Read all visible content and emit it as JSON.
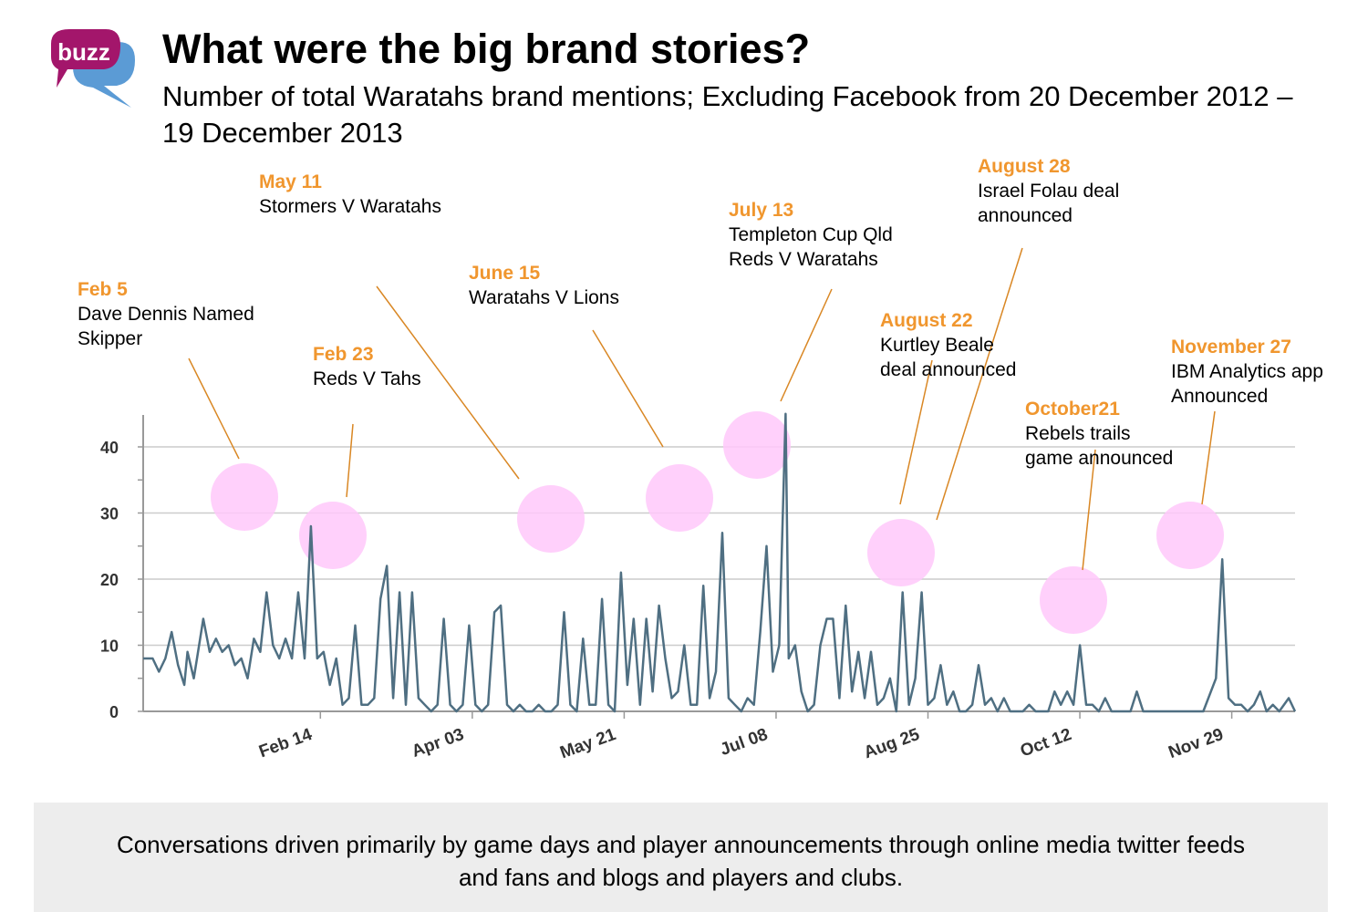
{
  "logo": {
    "text": "buzz",
    "colors": {
      "bubble_front": "#a3166b",
      "bubble_back": "#5b9bd5"
    }
  },
  "header": {
    "title": "What were the big brand stories?",
    "subtitle": "Number of total Waratahs brand mentions; Excluding Facebook from 20 December 2012 – 19 December 2013"
  },
  "colors": {
    "line": "#4f6f82",
    "annotation_date": "#f0962e",
    "leader": "#d98724",
    "highlight": "#ffc8fa",
    "grid": "#cccccc",
    "axis": "#999999"
  },
  "chart_data": {
    "type": "line",
    "title": "",
    "xlabel": "",
    "ylabel": "",
    "ylim": [
      0,
      46
    ],
    "yticks": [
      0,
      10,
      20,
      30,
      40
    ],
    "grid": true,
    "legend": "none",
    "x_range": [
      "2012-12-20",
      "2013-12-19"
    ],
    "x_tick_labels": [
      {
        "date": "2013-02-14",
        "label": "Feb 14"
      },
      {
        "date": "2013-04-03",
        "label": "Apr 03"
      },
      {
        "date": "2013-05-21",
        "label": "May 21"
      },
      {
        "date": "2013-07-08",
        "label": "Jul 08"
      },
      {
        "date": "2013-08-25",
        "label": "Aug 25"
      },
      {
        "date": "2013-10-12",
        "label": "Oct 12"
      },
      {
        "date": "2013-11-29",
        "label": "Nov 29"
      }
    ],
    "series": [
      {
        "points": [
          [
            "2012-12-20",
            8
          ],
          [
            "2012-12-23",
            8
          ],
          [
            "2012-12-25",
            6
          ],
          [
            "2012-12-27",
            8
          ],
          [
            "2012-12-29",
            12
          ],
          [
            "2012-12-31",
            7
          ],
          [
            "2013-01-02",
            4
          ],
          [
            "2013-01-03",
            9
          ],
          [
            "2013-01-05",
            5
          ],
          [
            "2013-01-06",
            8
          ],
          [
            "2013-01-08",
            14
          ],
          [
            "2013-01-10",
            9
          ],
          [
            "2013-01-12",
            11
          ],
          [
            "2013-01-14",
            9
          ],
          [
            "2013-01-16",
            10
          ],
          [
            "2013-01-18",
            7
          ],
          [
            "2013-01-20",
            8
          ],
          [
            "2013-01-22",
            5
          ],
          [
            "2013-01-24",
            11
          ],
          [
            "2013-01-26",
            9
          ],
          [
            "2013-01-28",
            18
          ],
          [
            "2013-01-30",
            10
          ],
          [
            "2013-02-01",
            8
          ],
          [
            "2013-02-03",
            11
          ],
          [
            "2013-02-05",
            8
          ],
          [
            "2013-02-07",
            18
          ],
          [
            "2013-02-09",
            8
          ],
          [
            "2013-02-11",
            28
          ],
          [
            "2013-02-13",
            8
          ],
          [
            "2013-02-15",
            9
          ],
          [
            "2013-02-17",
            4
          ],
          [
            "2013-02-19",
            8
          ],
          [
            "2013-02-21",
            1
          ],
          [
            "2013-02-23",
            2
          ],
          [
            "2013-02-25",
            13
          ],
          [
            "2013-02-27",
            1
          ],
          [
            "2013-03-01",
            1
          ],
          [
            "2013-03-03",
            2
          ],
          [
            "2013-03-05",
            17
          ],
          [
            "2013-03-07",
            22
          ],
          [
            "2013-03-09",
            2
          ],
          [
            "2013-03-11",
            18
          ],
          [
            "2013-03-13",
            1
          ],
          [
            "2013-03-15",
            18
          ],
          [
            "2013-03-17",
            2
          ],
          [
            "2013-03-19",
            1
          ],
          [
            "2013-03-21",
            0
          ],
          [
            "2013-03-23",
            1
          ],
          [
            "2013-03-25",
            14
          ],
          [
            "2013-03-27",
            1
          ],
          [
            "2013-03-29",
            0
          ],
          [
            "2013-03-31",
            1
          ],
          [
            "2013-04-02",
            13
          ],
          [
            "2013-04-04",
            1
          ],
          [
            "2013-04-06",
            0
          ],
          [
            "2013-04-08",
            1
          ],
          [
            "2013-04-10",
            15
          ],
          [
            "2013-04-12",
            16
          ],
          [
            "2013-04-14",
            1
          ],
          [
            "2013-04-16",
            0
          ],
          [
            "2013-04-18",
            1
          ],
          [
            "2013-04-20",
            0
          ],
          [
            "2013-04-22",
            0
          ],
          [
            "2013-04-24",
            1
          ],
          [
            "2013-04-26",
            0
          ],
          [
            "2013-04-28",
            0
          ],
          [
            "2013-04-30",
            1
          ],
          [
            "2013-05-02",
            15
          ],
          [
            "2013-05-04",
            1
          ],
          [
            "2013-05-06",
            0
          ],
          [
            "2013-05-08",
            11
          ],
          [
            "2013-05-10",
            1
          ],
          [
            "2013-05-12",
            1
          ],
          [
            "2013-05-14",
            17
          ],
          [
            "2013-05-16",
            1
          ],
          [
            "2013-05-18",
            0
          ],
          [
            "2013-05-20",
            21
          ],
          [
            "2013-05-22",
            4
          ],
          [
            "2013-05-24",
            14
          ],
          [
            "2013-05-26",
            1
          ],
          [
            "2013-05-28",
            14
          ],
          [
            "2013-05-30",
            3
          ],
          [
            "2013-06-01",
            16
          ],
          [
            "2013-06-03",
            8
          ],
          [
            "2013-06-05",
            2
          ],
          [
            "2013-06-07",
            3
          ],
          [
            "2013-06-09",
            10
          ],
          [
            "2013-06-11",
            1
          ],
          [
            "2013-06-13",
            1
          ],
          [
            "2013-06-15",
            19
          ],
          [
            "2013-06-17",
            2
          ],
          [
            "2013-06-19",
            6
          ],
          [
            "2013-06-21",
            27
          ],
          [
            "2013-06-23",
            2
          ],
          [
            "2013-06-25",
            1
          ],
          [
            "2013-06-27",
            0
          ],
          [
            "2013-06-29",
            2
          ],
          [
            "2013-07-01",
            1
          ],
          [
            "2013-07-03",
            12
          ],
          [
            "2013-07-05",
            25
          ],
          [
            "2013-07-07",
            6
          ],
          [
            "2013-07-09",
            10
          ],
          [
            "2013-07-11",
            45
          ],
          [
            "2013-07-12",
            8
          ],
          [
            "2013-07-14",
            10
          ],
          [
            "2013-07-16",
            3
          ],
          [
            "2013-07-18",
            0
          ],
          [
            "2013-07-20",
            1
          ],
          [
            "2013-07-22",
            10
          ],
          [
            "2013-07-24",
            14
          ],
          [
            "2013-07-26",
            14
          ],
          [
            "2013-07-28",
            2
          ],
          [
            "2013-07-30",
            16
          ],
          [
            "2013-08-01",
            3
          ],
          [
            "2013-08-03",
            9
          ],
          [
            "2013-08-05",
            2
          ],
          [
            "2013-08-07",
            9
          ],
          [
            "2013-08-09",
            1
          ],
          [
            "2013-08-11",
            2
          ],
          [
            "2013-08-13",
            5
          ],
          [
            "2013-08-15",
            0
          ],
          [
            "2013-08-17",
            18
          ],
          [
            "2013-08-19",
            1
          ],
          [
            "2013-08-21",
            5
          ],
          [
            "2013-08-23",
            18
          ],
          [
            "2013-08-25",
            1
          ],
          [
            "2013-08-27",
            2
          ],
          [
            "2013-08-29",
            7
          ],
          [
            "2013-08-31",
            1
          ],
          [
            "2013-09-02",
            3
          ],
          [
            "2013-09-04",
            0
          ],
          [
            "2013-09-06",
            0
          ],
          [
            "2013-09-08",
            1
          ],
          [
            "2013-09-10",
            7
          ],
          [
            "2013-09-12",
            1
          ],
          [
            "2013-09-14",
            2
          ],
          [
            "2013-09-16",
            0
          ],
          [
            "2013-09-18",
            2
          ],
          [
            "2013-09-20",
            0
          ],
          [
            "2013-09-24",
            0
          ],
          [
            "2013-09-26",
            1
          ],
          [
            "2013-09-28",
            0
          ],
          [
            "2013-10-02",
            0
          ],
          [
            "2013-10-04",
            3
          ],
          [
            "2013-10-06",
            1
          ],
          [
            "2013-10-08",
            3
          ],
          [
            "2013-10-10",
            1
          ],
          [
            "2013-10-12",
            10
          ],
          [
            "2013-10-14",
            1
          ],
          [
            "2013-10-16",
            1
          ],
          [
            "2013-10-18",
            0
          ],
          [
            "2013-10-20",
            2
          ],
          [
            "2013-10-22",
            0
          ],
          [
            "2013-10-28",
            0
          ],
          [
            "2013-10-30",
            3
          ],
          [
            "2013-11-01",
            0
          ],
          [
            "2013-11-20",
            0
          ],
          [
            "2013-11-24",
            5
          ],
          [
            "2013-11-26",
            23
          ],
          [
            "2013-11-28",
            2
          ],
          [
            "2013-11-30",
            1
          ],
          [
            "2013-12-02",
            1
          ],
          [
            "2013-12-04",
            0
          ],
          [
            "2013-12-06",
            1
          ],
          [
            "2013-12-08",
            3
          ],
          [
            "2013-12-10",
            0
          ],
          [
            "2013-12-12",
            1
          ],
          [
            "2013-12-14",
            0
          ],
          [
            "2013-12-17",
            2
          ],
          [
            "2013-12-19",
            0
          ]
        ]
      }
    ],
    "annotations": [
      {
        "date_label": "Feb 5",
        "lines": [
          "Dave Dennis Named",
          "Skipper"
        ]
      },
      {
        "date_label": "Feb 23",
        "lines": [
          "Reds V Tahs"
        ]
      },
      {
        "date_label": "May 11",
        "lines": [
          "Stormers V Waratahs"
        ]
      },
      {
        "date_label": "June 15",
        "lines": [
          "Waratahs V Lions"
        ]
      },
      {
        "date_label": "July 13",
        "lines": [
          "Templeton Cup Qld",
          "Reds V Waratahs"
        ]
      },
      {
        "date_label": "August 22",
        "lines": [
          "Kurtley Beale",
          "deal announced"
        ]
      },
      {
        "date_label": "August 28",
        "lines": [
          "Israel Folau deal",
          "announced"
        ]
      },
      {
        "date_label": "October21",
        "lines": [
          "Rebels trails",
          "game announced"
        ]
      },
      {
        "date_label": "November 27",
        "lines": [
          "IBM  Analytics app",
          "Announced"
        ]
      }
    ]
  },
  "footer": {
    "text_line1": "Conversations driven primarily by game days and player announcements through online media twitter feeds",
    "text_line2": "and fans and blogs and players and clubs."
  }
}
